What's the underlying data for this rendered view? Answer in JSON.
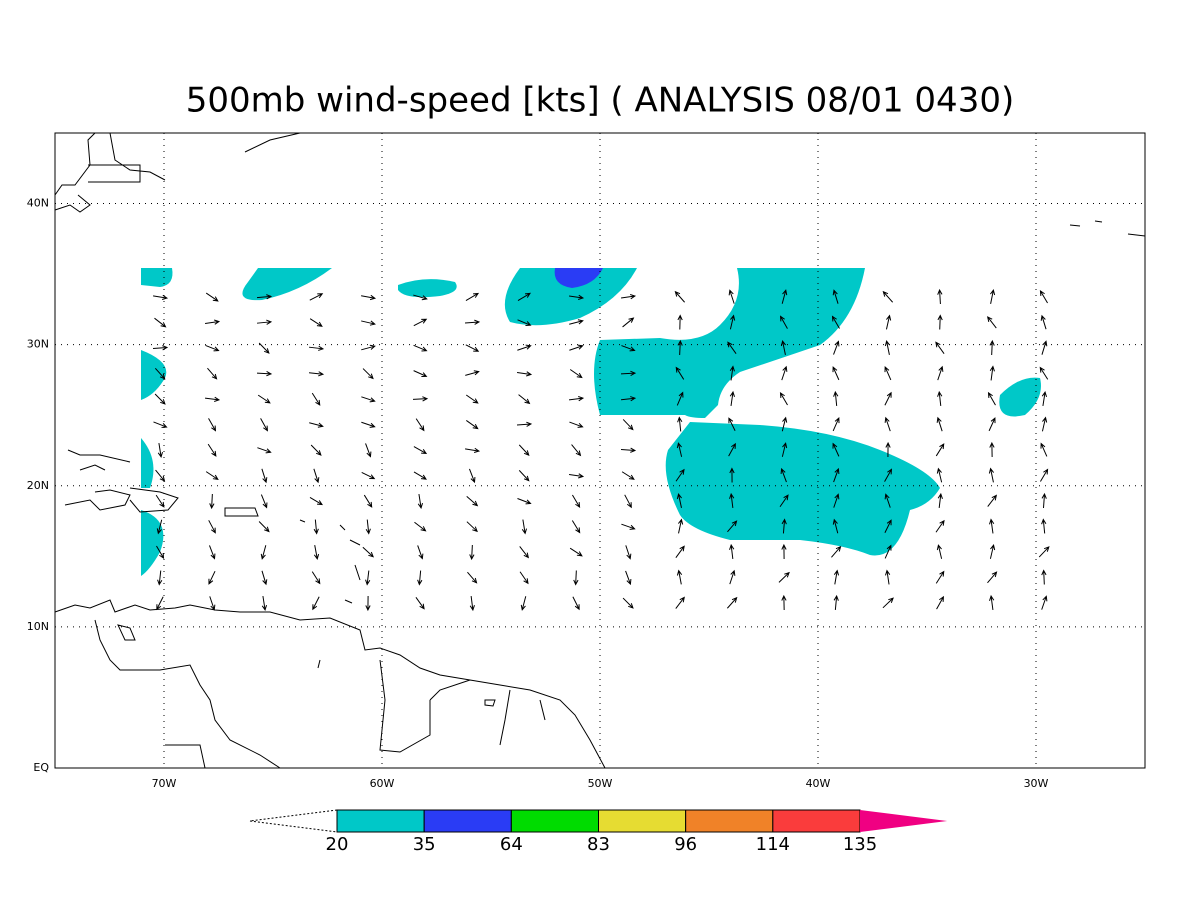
{
  "map": {
    "title": "500mb wind-speed [kts] ( ANALYSIS 08/01 0430)",
    "xlim": [
      -75,
      -25
    ],
    "ylim": [
      0,
      45
    ],
    "xticks": [
      {
        "value": -70,
        "label": "70W"
      },
      {
        "value": -60,
        "label": "60W"
      },
      {
        "value": -50,
        "label": "50W"
      },
      {
        "value": -40,
        "label": "40W"
      },
      {
        "value": -30,
        "label": "30W"
      }
    ],
    "yticks": [
      {
        "value": 0,
        "label": "EQ"
      },
      {
        "value": 10,
        "label": "10N"
      },
      {
        "value": 20,
        "label": "20N"
      },
      {
        "value": 30,
        "label": "30N"
      },
      {
        "value": 40,
        "label": "40N"
      }
    ],
    "colorbar": {
      "levels": [
        20,
        35,
        64,
        83,
        96,
        114,
        135
      ],
      "colors": [
        "#00c8c8",
        "#2a3cf5",
        "#00dc00",
        "#e6dc32",
        "#f08228",
        "#fa3c3c",
        "#f00082"
      ]
    }
  }
}
